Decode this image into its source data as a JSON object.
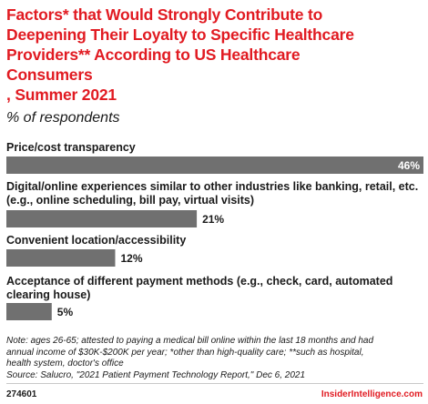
{
  "title_lines": [
    "Factors* that Would Strongly Contribute to",
    "Deepening Their Loyalty to Specific Healthcare",
    "Providers** According to US Healthcare",
    "Consumers",
    ", Summer 2021"
  ],
  "subtitle": "% of respondents",
  "chart_data": {
    "type": "bar",
    "orientation": "horizontal",
    "categories": [
      [
        "Price/cost transparency"
      ],
      [
        "Digital/online experiences similar to other industries like banking, retail, etc.",
        "(e.g., online scheduling, bill pay, virtual visits)"
      ],
      [
        "Convenient location/accessibility"
      ],
      [
        "Acceptance of different payment methods (e.g., check, card, automated",
        "clearing house)"
      ]
    ],
    "values": [
      46,
      21,
      12,
      5
    ],
    "value_labels": [
      "46%",
      "21%",
      "12%",
      "5%"
    ],
    "xlim": [
      0,
      46
    ],
    "bar_color": "#707070",
    "grid": false,
    "legend": "none"
  },
  "note_lines": [
    "Note: ages 26-65; attested to paying a medical bill online within the last 18 months and had",
    "annual income of $30K-$200K per year; *other than high-quality care; **such as hospital,",
    "health system, doctor's office",
    "Source: Salucro, \"2021 Patient Payment Technology Report,\" Dec 6, 2021"
  ],
  "footer": {
    "id": "274601",
    "brand": "InsiderIntelligence.com"
  },
  "colors": {
    "title": "#e11b22",
    "bar": "#707070",
    "brand": "#e11b22"
  }
}
